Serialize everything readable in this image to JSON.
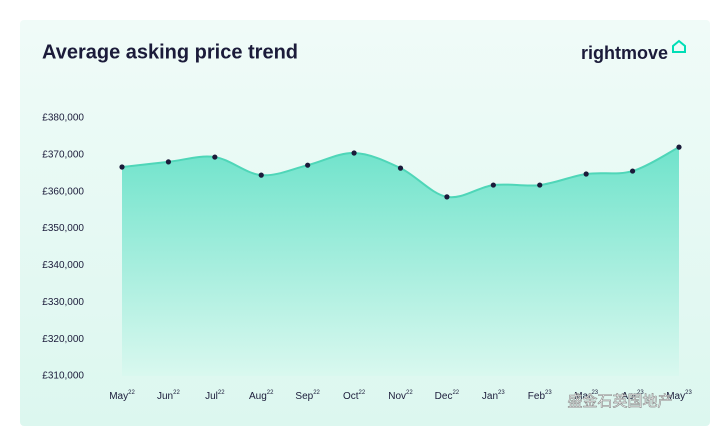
{
  "chart_data": {
    "type": "area",
    "title": "Average asking price trend",
    "brand": "rightmove",
    "categories": [
      "May",
      "Jun",
      "Jul",
      "Aug",
      "Sep",
      "Oct",
      "Nov",
      "Dec",
      "Jan",
      "Feb",
      "Mar",
      "Apr",
      "May"
    ],
    "category_years": [
      "22",
      "22",
      "22",
      "22",
      "22",
      "22",
      "22",
      "22",
      "23",
      "23",
      "23",
      "23",
      "23"
    ],
    "values": [
      366700,
      368100,
      369400,
      364500,
      367200,
      370500,
      366400,
      358600,
      361800,
      361800,
      364800,
      365600,
      372100
    ],
    "color": "#6ee4cc",
    "line_color": "#4fd6b8",
    "marker_color": "#1b1b3a",
    "ylim": [
      310000,
      380000
    ],
    "yticks": [
      {
        "value": 310000,
        "label": "£310,000"
      },
      {
        "value": 320000,
        "label": "£320,000"
      },
      {
        "value": 330000,
        "label": "£330,000"
      },
      {
        "value": 340000,
        "label": "£340,000"
      },
      {
        "value": 350000,
        "label": "£350,000"
      },
      {
        "value": 360000,
        "label": "£360,000"
      },
      {
        "value": 370000,
        "label": "£370,000"
      },
      {
        "value": 380000,
        "label": "£380,000"
      }
    ],
    "watermark": "盛金石英国地产"
  }
}
